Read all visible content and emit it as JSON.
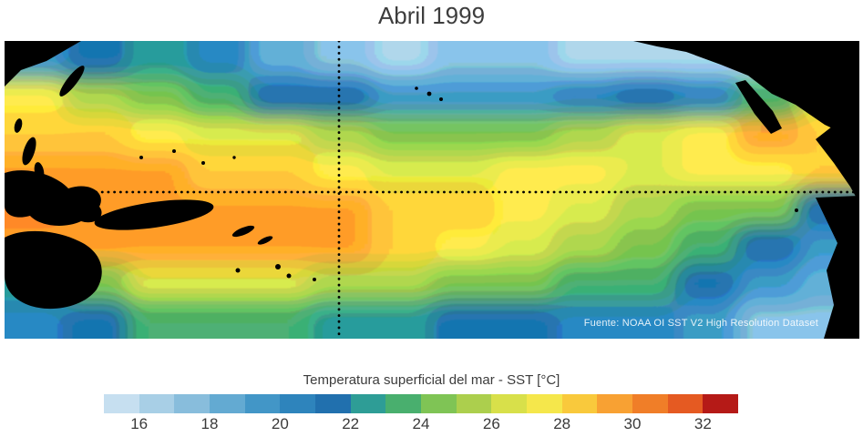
{
  "title": "Abril 1999",
  "map": {
    "source_note": "Fuente: NOAA OI SST V2 High Resolution Dataset",
    "land_color": "#000000",
    "gridline_color": "#000000"
  },
  "colorbar": {
    "label": "Temperatura superficial del mar - SST  [°C]",
    "ticks": [
      16,
      18,
      20,
      22,
      24,
      26,
      28,
      30,
      32
    ],
    "range": [
      15,
      33
    ],
    "colors": [
      "#c6dff0",
      "#a8cfe6",
      "#88bddc",
      "#63aad2",
      "#4296c7",
      "#2e84bc",
      "#2170ae",
      "#2e9d96",
      "#49af6e",
      "#7fc455",
      "#accf4d",
      "#d8e04a",
      "#f5e74b",
      "#f9c93c",
      "#f8a133",
      "#f07e28",
      "#e55a22",
      "#b51a17"
    ]
  },
  "chart_data": {
    "type": "heatmap",
    "title": "Abril 1999",
    "colorbar_label": "Temperatura superficial del mar - SST  [°C]",
    "units": "°C",
    "scale_range": [
      15,
      33
    ],
    "colorbar_ticks": [
      16,
      18,
      20,
      22,
      24,
      26,
      28,
      30,
      32
    ],
    "source": "Fuente: NOAA OI SST V2 High Resolution Dataset",
    "gridlines": [
      "equator (horizontal dotted)",
      "date line (vertical dotted)"
    ],
    "grid": {
      "description": "Approximate SST (°C) estimated from figure colors on a coarse 14x8 grid over the Pacific; rows north to south, columns west to east",
      "values": [
        [
          19,
          21,
          22,
          20,
          18,
          17,
          16.5,
          17,
          17,
          16.5,
          16,
          16,
          15.5,
          15.5
        ],
        [
          27,
          25.5,
          24,
          23,
          21.5,
          21,
          19.5,
          19,
          19.5,
          20.5,
          21,
          20.5,
          23,
          26
        ],
        [
          28.5,
          28,
          27,
          26.5,
          26,
          25.5,
          24.5,
          24,
          24.5,
          25,
          26,
          27.5,
          29,
          28.5
        ],
        [
          29.5,
          29,
          29,
          28.5,
          28,
          27,
          26.5,
          26.5,
          27,
          27,
          26.5,
          27,
          27.5,
          28
        ],
        [
          30,
          29.5,
          29.5,
          29,
          29.5,
          29,
          28.5,
          28,
          27.5,
          26.5,
          25.5,
          24.5,
          24,
          21
        ],
        [
          29,
          29,
          29.5,
          29.5,
          29,
          29,
          28.5,
          27.5,
          26.5,
          25.5,
          24.5,
          23.5,
          21.5,
          19
        ],
        [
          22,
          24,
          26,
          26.5,
          26,
          25.5,
          25,
          24.5,
          24,
          23.5,
          23,
          21.5,
          19.5,
          18
        ],
        [
          20.5,
          21.5,
          23,
          23.5,
          23,
          22.5,
          22,
          21.5,
          21,
          20.5,
          20,
          19,
          17.5,
          17
        ]
      ]
    }
  }
}
